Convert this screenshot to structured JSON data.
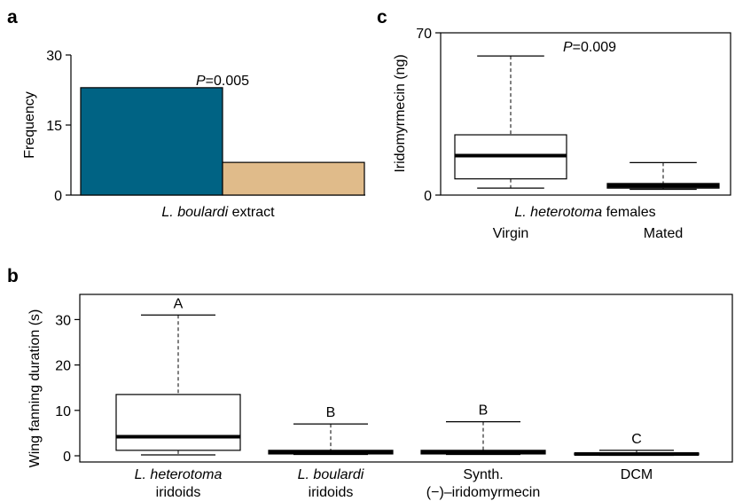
{
  "chart_data": [
    {
      "panel": "a",
      "type": "bar",
      "ylabel": "Frequency",
      "ylim": [
        0,
        30
      ],
      "yticks": [
        "0",
        "15",
        "30"
      ],
      "xlabel_italic": "L. boulardi",
      "xlabel_rest": " extract",
      "annotation_italic": "P",
      "annotation_rest": "=0.005",
      "values": [
        23,
        7
      ],
      "colors": [
        "#006384",
        "#e0bb8a"
      ]
    },
    {
      "panel": "c",
      "type": "box",
      "ylabel": "Iridomyrmecin (ng)",
      "ylim": [
        0,
        70
      ],
      "yticks": [
        "0",
        "70"
      ],
      "group_label_italic": "L. heterotoma",
      "group_label_rest": " females",
      "categories": [
        "Virgin",
        "Mated"
      ],
      "annotation_italic": "P",
      "annotation_rest": "=0.009",
      "boxes": [
        {
          "min": 3,
          "q1": 7,
          "median": 17,
          "q3": 26,
          "max": 60
        },
        {
          "min": 2.5,
          "q1": 3,
          "median": 4,
          "q3": 5,
          "max": 14
        }
      ]
    },
    {
      "panel": "b",
      "type": "box",
      "ylabel": "Wing fanning duration (s)",
      "ylim": [
        0,
        36
      ],
      "yticks": [
        "0",
        "10",
        "20",
        "30"
      ],
      "categories": [
        {
          "line1": "L. heterotoma",
          "line1_italic": true,
          "line2": "iridoids"
        },
        {
          "line1": "L. boulardi",
          "line1_italic": true,
          "line2": "iridoids"
        },
        {
          "line1": "Synth.",
          "line1_italic": false,
          "line2": "(−)–iridomyrmecin"
        },
        {
          "line1": "DCM",
          "line1_italic": false,
          "line2": ""
        }
      ],
      "letters": [
        "A",
        "B",
        "B",
        "C"
      ],
      "boxes": [
        {
          "min": 0.2,
          "q1": 1.2,
          "median": 4.2,
          "q3": 13.5,
          "max": 31
        },
        {
          "min": 0.3,
          "q1": 0.4,
          "median": 0.8,
          "q3": 1.2,
          "max": 7
        },
        {
          "min": 0.3,
          "q1": 0.4,
          "median": 0.8,
          "q3": 1.2,
          "max": 7.5
        },
        {
          "min": 0.1,
          "q1": 0.2,
          "median": 0.4,
          "q3": 0.6,
          "max": 1.2
        }
      ]
    }
  ]
}
